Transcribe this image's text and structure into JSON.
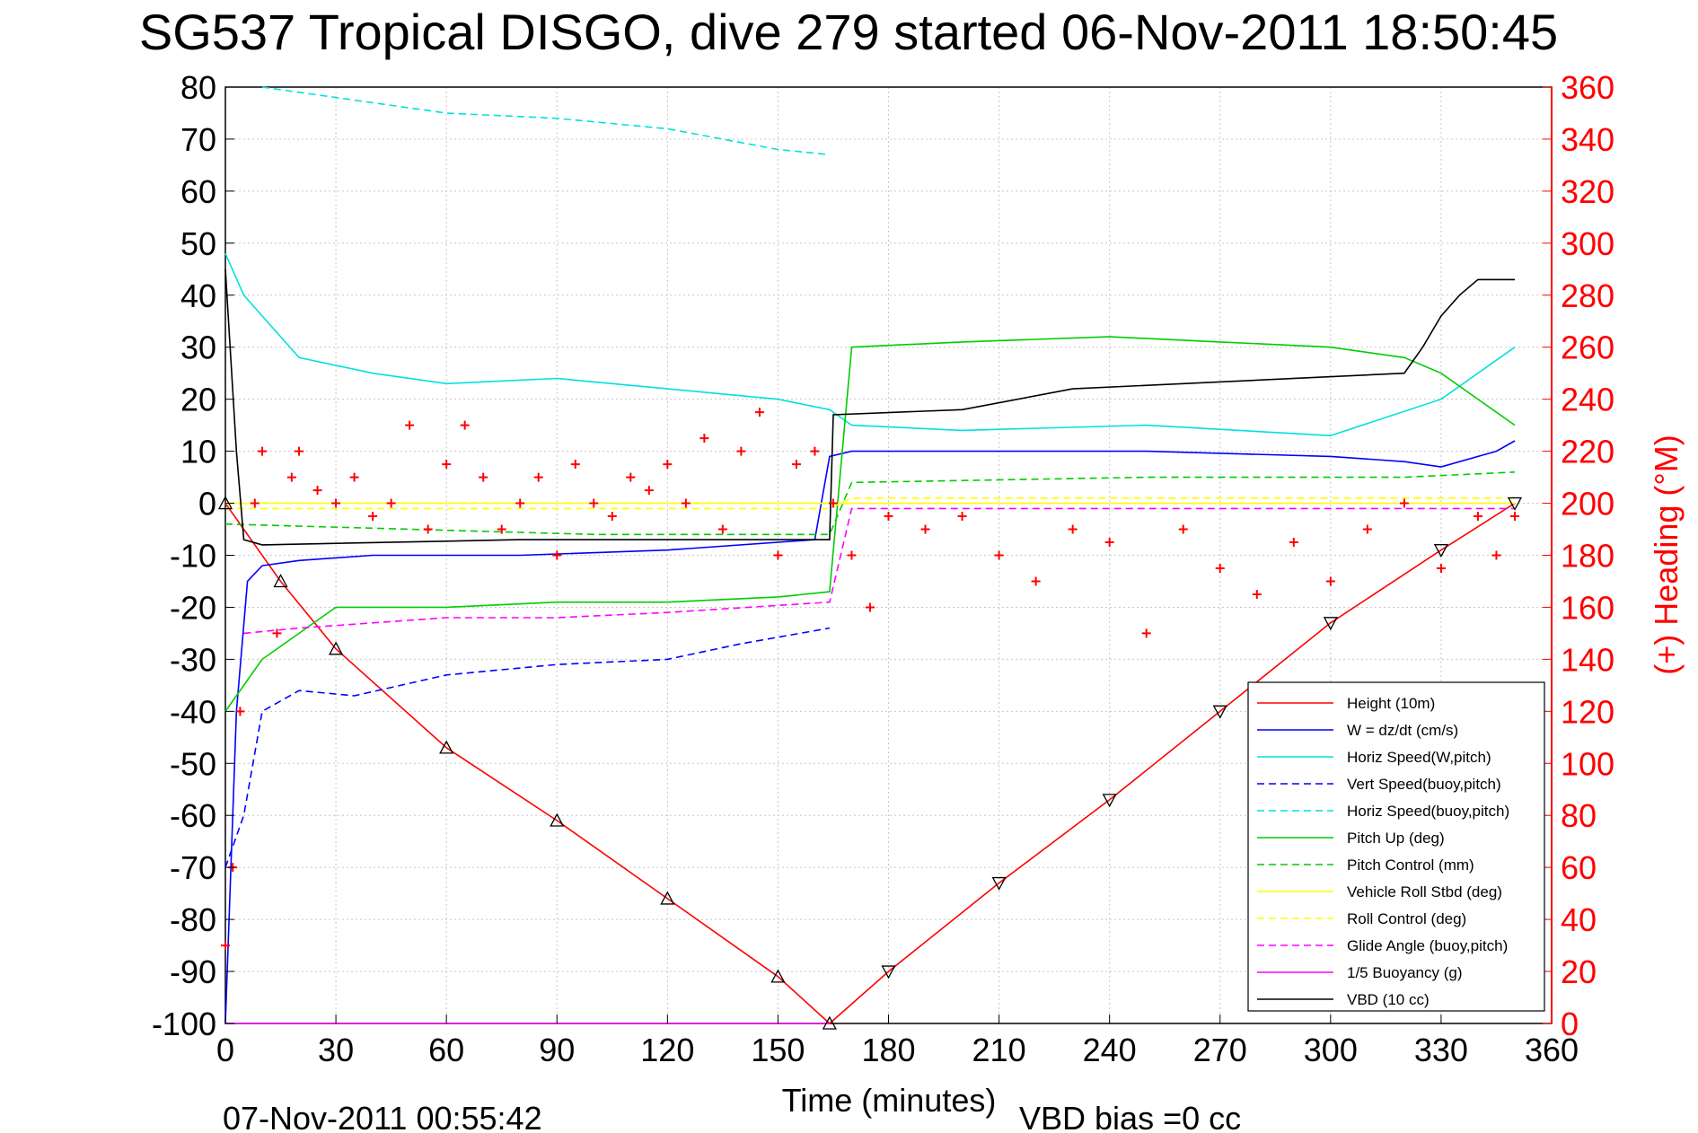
{
  "title": "SG537 Tropical DISGO, dive 279 started 06-Nov-2011 18:50:45",
  "footer": {
    "end_time": "07-Nov-2011 00:55:42",
    "vbd_bias": "VBD bias =0 cc"
  },
  "chart_data": {
    "type": "line",
    "title": "SG537 Tropical DISGO, dive 279 started 06-Nov-2011 18:50:45",
    "xlabel": "Time (minutes)",
    "ylabel": "",
    "y2label": "(+) Heading (°M)",
    "xlim": [
      0,
      360
    ],
    "ylim": [
      -100,
      80
    ],
    "y2lim": [
      0,
      360
    ],
    "xticks": [
      "0",
      "30",
      "60",
      "90",
      "120",
      "150",
      "180",
      "210",
      "240",
      "270",
      "300",
      "330",
      "360"
    ],
    "yticks": [
      "80",
      "70",
      "60",
      "50",
      "40",
      "30",
      "20",
      "10",
      "0",
      "-10",
      "-20",
      "-30",
      "-40",
      "-50",
      "-60",
      "-70",
      "-80",
      "-90",
      "-100"
    ],
    "y2ticks": [
      "360",
      "340",
      "320",
      "300",
      "280",
      "260",
      "240",
      "220",
      "200",
      "180",
      "160",
      "140",
      "120",
      "100",
      "80",
      "60",
      "40",
      "20",
      "0"
    ],
    "grid": true,
    "legend_position": "lower-right",
    "series": [
      {
        "name": "Height (10m)",
        "color": "#ff0000",
        "style": "solid",
        "x": [
          0,
          15,
          30,
          60,
          90,
          120,
          150,
          164,
          180,
          210,
          240,
          270,
          300,
          330,
          350
        ],
        "y": [
          0,
          -15,
          -28,
          -47,
          -61,
          -76,
          -91,
          -100,
          -90,
          -73,
          -57,
          -40,
          -23,
          -9,
          0
        ]
      },
      {
        "name": "W = dz/dt (cm/s)",
        "color": "#0000ff",
        "style": "solid",
        "x": [
          0,
          3,
          6,
          10,
          20,
          40,
          80,
          120,
          160,
          164,
          170,
          200,
          250,
          300,
          320,
          330,
          345,
          350
        ],
        "y": [
          -100,
          -40,
          -15,
          -12,
          -11,
          -10,
          -10,
          -9,
          -7,
          9,
          10,
          10,
          10,
          9,
          8,
          7,
          10,
          12
        ]
      },
      {
        "name": "Horiz Speed(W,pitch)",
        "color": "#00e0e0",
        "style": "solid",
        "x": [
          0,
          5,
          20,
          40,
          60,
          90,
          120,
          150,
          164,
          170,
          200,
          250,
          300,
          330,
          350
        ],
        "y": [
          48,
          40,
          28,
          25,
          23,
          24,
          22,
          20,
          18,
          15,
          14,
          15,
          13,
          20,
          30
        ]
      },
      {
        "name": "Vert Speed(buoy,pitch)",
        "color": "#0000ff",
        "style": "dashed",
        "x": [
          0,
          5,
          10,
          20,
          35,
          60,
          90,
          120,
          140,
          164
        ],
        "y": [
          -70,
          -60,
          -40,
          -36,
          -37,
          -33,
          -31,
          -30,
          -27,
          -24
        ]
      },
      {
        "name": "Horiz Speed(buoy,pitch)",
        "color": "#00e0e0",
        "style": "dashed",
        "x": [
          10,
          20,
          40,
          60,
          90,
          120,
          150,
          164
        ],
        "y": [
          80,
          79,
          77,
          75,
          74,
          72,
          68,
          67
        ]
      },
      {
        "name": "Pitch Up (deg)",
        "color": "#00cc00",
        "style": "solid",
        "x": [
          0,
          10,
          30,
          60,
          90,
          120,
          150,
          164,
          170,
          200,
          240,
          270,
          300,
          320,
          330,
          350
        ],
        "y": [
          -40,
          -30,
          -20,
          -20,
          -19,
          -19,
          -18,
          -17,
          30,
          31,
          32,
          31,
          30,
          28,
          25,
          15
        ]
      },
      {
        "name": "Pitch Control (mm)",
        "color": "#00cc00",
        "style": "dashed",
        "x": [
          0,
          50,
          100,
          164,
          170,
          250,
          320,
          350
        ],
        "y": [
          -4,
          -5,
          -6,
          -6,
          4,
          5,
          5,
          6
        ]
      },
      {
        "name": "Vehicle Roll Stbd (deg)",
        "color": "#ffff00",
        "style": "solid",
        "x": [
          0,
          164,
          170,
          350
        ],
        "y": [
          0,
          0,
          0,
          0
        ]
      },
      {
        "name": "Roll Control (deg)",
        "color": "#ffff00",
        "style": "dashed",
        "x": [
          0,
          164,
          170,
          350
        ],
        "y": [
          -1,
          -1,
          1,
          1
        ]
      },
      {
        "name": "Glide Angle (buoy,pitch)",
        "color": "#ff00ff",
        "style": "dashed",
        "x": [
          5,
          20,
          60,
          90,
          120,
          164,
          170,
          350
        ],
        "y": [
          -25,
          -24,
          -22,
          -22,
          -21,
          -19,
          -1,
          -1
        ]
      },
      {
        "name": "1/5 Buoyancy (g)",
        "color": "#ff00ff",
        "style": "solid",
        "x": [
          0,
          5,
          10,
          164
        ],
        "y": [
          -100,
          -100,
          -100,
          -100
        ]
      },
      {
        "name": "VBD (10 cc)",
        "color": "#000000",
        "style": "solid",
        "x": [
          0,
          3,
          5,
          10,
          80,
          164,
          165,
          200,
          230,
          320,
          325,
          330,
          335,
          340,
          345,
          350
        ],
        "y": [
          45,
          10,
          -7,
          -8,
          -7,
          -7,
          17,
          18,
          22,
          25,
          30,
          36,
          40,
          43,
          43,
          43
        ]
      },
      {
        "name": "Heading",
        "color": "#ff0000",
        "style": "markers",
        "axis": "right",
        "x": [
          0,
          2,
          4,
          8,
          10,
          14,
          18,
          20,
          25,
          30,
          35,
          40,
          45,
          50,
          55,
          60,
          65,
          70,
          75,
          80,
          85,
          90,
          95,
          100,
          105,
          110,
          115,
          120,
          125,
          130,
          135,
          140,
          145,
          150,
          155,
          160,
          165,
          170,
          175,
          180,
          190,
          200,
          210,
          220,
          230,
          240,
          250,
          260,
          270,
          280,
          290,
          300,
          310,
          320,
          330,
          340,
          345,
          350
        ],
        "y": [
          30,
          60,
          120,
          200,
          220,
          150,
          210,
          220,
          205,
          200,
          210,
          195,
          200,
          230,
          190,
          215,
          230,
          210,
          190,
          200,
          210,
          180,
          215,
          200,
          195,
          210,
          205,
          215,
          200,
          225,
          190,
          220,
          235,
          180,
          215,
          220,
          200,
          180,
          160,
          195,
          190,
          195,
          180,
          170,
          190,
          185,
          150,
          190,
          175,
          165,
          185,
          170,
          190,
          200,
          175,
          195,
          180,
          195
        ]
      }
    ],
    "markers": {
      "descent_symbol": "triangle-up",
      "ascent_symbol": "triangle-down",
      "color": "#000000"
    }
  },
  "legend_labels": [
    "Height (10m)",
    "W = dz/dt (cm/s)",
    "Horiz Speed(W,pitch)",
    "Vert Speed(buoy,pitch)",
    "Horiz Speed(buoy,pitch)",
    "Pitch Up (deg)",
    "Pitch Control (mm)",
    "Vehicle Roll Stbd (deg)",
    "Roll Control (deg)",
    "Glide Angle (buoy,pitch)",
    "1/5 Buoyancy (g)",
    "VBD (10 cc)"
  ]
}
